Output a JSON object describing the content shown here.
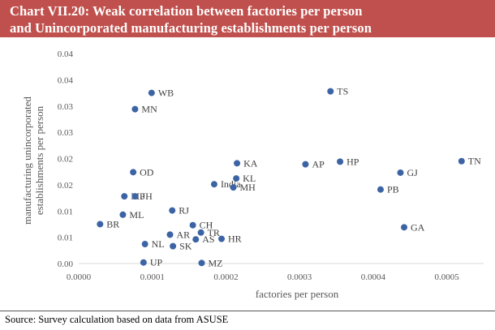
{
  "header": {
    "title_line1": "Chart VII.20: Weak correlation between factories per person",
    "title_line2": "and Unincorporated manufacturing establishments per person",
    "background_color": "#c0504d"
  },
  "footer": {
    "source": "Source: Survey calculation based on data from ASUSE"
  },
  "chart_data": {
    "type": "scatter",
    "title": "Weak correlation between factories per person and Unincorporated manufacturing establishments per person",
    "xlabel": "factories per person",
    "ylabel": "manufacturing unincorporated establishments per person",
    "xlim": [
      0,
      0.00055
    ],
    "ylim": [
      0,
      0.04
    ],
    "x_ticks": [
      0,
      0.0001,
      0.0002,
      0.0003,
      0.0004,
      0.0005
    ],
    "x_tick_labels": [
      "0.0000",
      "0.0001",
      "0.0002",
      "0.0003",
      "0.0004",
      "0.0005"
    ],
    "y_ticks": [
      0,
      0.005,
      0.01,
      0.015,
      0.02,
      0.025,
      0.03,
      0.035,
      0.04
    ],
    "y_tick_labels": [
      "0.00",
      "0.01",
      "0.01",
      "0.02",
      "0.02",
      "0.03",
      "0.03",
      "0.04",
      "0.04"
    ],
    "grid": false,
    "marker_color": "#3c64a5",
    "points": [
      {
        "label": "WB",
        "x": 9.9e-05,
        "y": 0.0325
      },
      {
        "label": "TS",
        "x": 0.000342,
        "y": 0.0328
      },
      {
        "label": "MN",
        "x": 7.65e-05,
        "y": 0.0294
      },
      {
        "label": "KA",
        "x": 0.000215,
        "y": 0.0191
      },
      {
        "label": "AP",
        "x": 0.000308,
        "y": 0.0189
      },
      {
        "label": "HP",
        "x": 0.000355,
        "y": 0.0194
      },
      {
        "label": "TN",
        "x": 0.00052,
        "y": 0.0195
      },
      {
        "label": "OD",
        "x": 7.4e-05,
        "y": 0.0174
      },
      {
        "label": "GJ",
        "x": 0.000437,
        "y": 0.0173
      },
      {
        "label": "KL",
        "x": 0.000214,
        "y": 0.0162
      },
      {
        "label": "India",
        "x": 0.000184,
        "y": 0.0151
      },
      {
        "label": "MH",
        "x": 0.00021,
        "y": 0.0145
      },
      {
        "label": "PB",
        "x": 0.00041,
        "y": 0.0141
      },
      {
        "label": "MP",
        "x": 6.2e-05,
        "y": 0.0128
      },
      {
        "label": "JH",
        "x": 7.65e-05,
        "y": 0.0128
      },
      {
        "label": "RJ",
        "x": 0.000127,
        "y": 0.0101
      },
      {
        "label": "ML",
        "x": 6e-05,
        "y": 0.0093
      },
      {
        "label": "BR",
        "x": 2.9e-05,
        "y": 0.0075
      },
      {
        "label": "CH",
        "x": 0.000155,
        "y": 0.0073
      },
      {
        "label": "GA",
        "x": 0.000442,
        "y": 0.0069
      },
      {
        "label": "AR",
        "x": 0.000124,
        "y": 0.0055
      },
      {
        "label": "TR",
        "x": 0.000166,
        "y": 0.0059
      },
      {
        "label": "AS",
        "x": 0.000159,
        "y": 0.0046
      },
      {
        "label": "HR",
        "x": 0.000194,
        "y": 0.0047
      },
      {
        "label": "NL",
        "x": 9e-05,
        "y": 0.0037
      },
      {
        "label": "SK",
        "x": 0.000128,
        "y": 0.0033
      },
      {
        "label": "UP",
        "x": 8.8e-05,
        "y": 0.0002
      },
      {
        "label": "MZ",
        "x": 0.000167,
        "y": 0.0001
      }
    ]
  }
}
